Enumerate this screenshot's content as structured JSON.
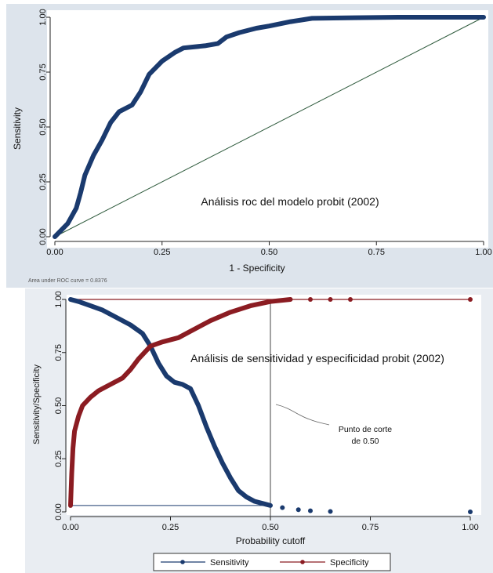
{
  "colors": {
    "panel_top_bg": "#dde4ec",
    "panel_bottom_bg": "#e9edf2",
    "plot_bg": "#ffffff",
    "navy": "#1a3a6e",
    "maroon": "#8b1c22",
    "ref_line": "#2e5a3c",
    "axis": "#222222"
  },
  "chart_data": [
    {
      "type": "line",
      "title": "",
      "annotation": "Análisis roc del modelo probit (2002)",
      "xlabel": "1 - Specificity",
      "ylabel": "Sensitivity",
      "xlim": [
        0,
        1
      ],
      "ylim": [
        0,
        1
      ],
      "xticks": [
        "0.00",
        "0.25",
        "0.50",
        "0.75",
        "1.00"
      ],
      "yticks": [
        "0.00",
        "0.25",
        "0.50",
        "0.75",
        "1.00"
      ],
      "note": "Area under ROC curve = 0.8376",
      "grid": false,
      "series": [
        {
          "values": [
            [
              0,
              0
            ],
            [
              0.01,
              0.02
            ],
            [
              0.03,
              0.06
            ],
            [
              0.05,
              0.13
            ],
            [
              0.06,
              0.2
            ],
            [
              0.07,
              0.28
            ],
            [
              0.09,
              0.37
            ],
            [
              0.11,
              0.44
            ],
            [
              0.13,
              0.52
            ],
            [
              0.15,
              0.57
            ],
            [
              0.18,
              0.6
            ],
            [
              0.2,
              0.66
            ],
            [
              0.22,
              0.74
            ],
            [
              0.25,
              0.8
            ],
            [
              0.28,
              0.84
            ],
            [
              0.3,
              0.86
            ],
            [
              0.35,
              0.87
            ],
            [
              0.38,
              0.88
            ],
            [
              0.4,
              0.91
            ],
            [
              0.43,
              0.93
            ],
            [
              0.47,
              0.95
            ],
            [
              0.5,
              0.96
            ],
            [
              0.55,
              0.98
            ],
            [
              0.6,
              0.995
            ],
            [
              0.7,
              0.998
            ],
            [
              0.8,
              1
            ],
            [
              0.9,
              1
            ],
            [
              1,
              1
            ]
          ]
        }
      ],
      "reference_line": [
        [
          0,
          0
        ],
        [
          1,
          1
        ]
      ]
    },
    {
      "type": "line",
      "title": "",
      "annotation": "Análisis de sensitividad y especificidad probit (2002)",
      "callout": [
        "Punto de corte",
        "de 0.50"
      ],
      "xlabel": "Probability cutoff",
      "ylabel": "Sensitivity/Specificity",
      "xlim": [
        0,
        1
      ],
      "ylim": [
        0,
        1
      ],
      "xticks": [
        "0.00",
        "0.25",
        "0.50",
        "0.75",
        "1.00"
      ],
      "yticks": [
        "0.00",
        "0.25",
        "0.50",
        "0.75",
        "1.00"
      ],
      "grid": false,
      "legend_position": "bottom",
      "vline_x": 0.5,
      "series": [
        {
          "name": "Sensitivity",
          "values": [
            [
              0,
              1
            ],
            [
              0.02,
              0.99
            ],
            [
              0.05,
              0.97
            ],
            [
              0.08,
              0.95
            ],
            [
              0.1,
              0.93
            ],
            [
              0.12,
              0.91
            ],
            [
              0.15,
              0.88
            ],
            [
              0.18,
              0.84
            ],
            [
              0.2,
              0.78
            ],
            [
              0.22,
              0.7
            ],
            [
              0.24,
              0.64
            ],
            [
              0.26,
              0.61
            ],
            [
              0.28,
              0.6
            ],
            [
              0.3,
              0.58
            ],
            [
              0.32,
              0.5
            ],
            [
              0.34,
              0.4
            ],
            [
              0.36,
              0.31
            ],
            [
              0.38,
              0.23
            ],
            [
              0.4,
              0.16
            ],
            [
              0.42,
              0.1
            ],
            [
              0.44,
              0.07
            ],
            [
              0.46,
              0.05
            ],
            [
              0.48,
              0.04
            ],
            [
              0.5,
              0.03
            ],
            [
              0.53,
              0.02
            ],
            [
              0.57,
              0.01
            ],
            [
              0.6,
              0.005
            ],
            [
              0.65,
              0.002
            ],
            [
              1,
              0
            ]
          ]
        },
        {
          "name": "Specificity",
          "values": [
            [
              0,
              0.03
            ],
            [
              0.003,
              0.18
            ],
            [
              0.006,
              0.3
            ],
            [
              0.01,
              0.38
            ],
            [
              0.02,
              0.45
            ],
            [
              0.03,
              0.5
            ],
            [
              0.05,
              0.54
            ],
            [
              0.07,
              0.57
            ],
            [
              0.1,
              0.6
            ],
            [
              0.13,
              0.63
            ],
            [
              0.15,
              0.67
            ],
            [
              0.17,
              0.72
            ],
            [
              0.2,
              0.78
            ],
            [
              0.23,
              0.8
            ],
            [
              0.27,
              0.82
            ],
            [
              0.3,
              0.85
            ],
            [
              0.35,
              0.9
            ],
            [
              0.4,
              0.94
            ],
            [
              0.45,
              0.97
            ],
            [
              0.5,
              0.99
            ],
            [
              0.55,
              1
            ],
            [
              0.6,
              1
            ],
            [
              0.65,
              1
            ],
            [
              0.7,
              1
            ],
            [
              1,
              1
            ]
          ]
        }
      ]
    }
  ]
}
